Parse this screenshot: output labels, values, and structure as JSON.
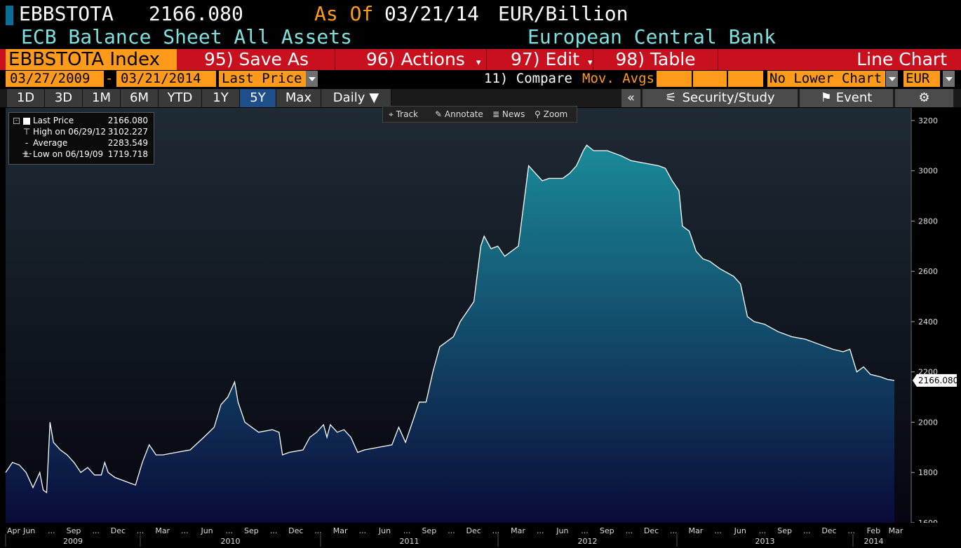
{
  "header": {
    "ticker": "EBBSTOTA",
    "price": "2166.080",
    "as_of_label": "As Of",
    "as_of_date": "03/21/14",
    "units": "EUR/Billion",
    "security_name": "ECB Balance Sheet All Assets",
    "source": "European Central Bank"
  },
  "menu": {
    "index_tab": "EBBSTOTA Index",
    "save_as": "95) Save As",
    "actions": "96) Actions",
    "edit": "97) Edit",
    "table": "98) Table",
    "chart_type": "Line Chart"
  },
  "controls": {
    "start_date": "03/27/2009",
    "date_sep": "-",
    "end_date": "03/21/2014",
    "field": "Last Price",
    "compare": "11) Compare",
    "mov_avgs": "Mov. Avgs",
    "lower_chart": "No Lower Chart",
    "currency": "EUR"
  },
  "periods": [
    {
      "label": "1D"
    },
    {
      "label": "3D"
    },
    {
      "label": "1M"
    },
    {
      "label": "6M"
    },
    {
      "label": "YTD"
    },
    {
      "label": "1Y"
    },
    {
      "label": "5Y"
    },
    {
      "label": "Max"
    }
  ],
  "frequency": "Daily",
  "tools": {
    "collapse": "«",
    "security_study": "Security/Study",
    "event": "Event"
  },
  "chart_tools": {
    "track": "Track",
    "annotate": "Annotate",
    "news": "News",
    "zoom": "Zoom"
  },
  "legend": {
    "last_label": "Last Price",
    "last_value": "2166.080",
    "high_label": "High on 06/29/12",
    "high_value": "3102.227",
    "avg_label": "Average",
    "avg_value": "2283.549",
    "low_label": "Low on 06/19/09",
    "low_value": "1719.718"
  },
  "colors": {
    "fill_top": "#1a8a99",
    "fill_bottom": "#0a0a3a",
    "line": "#ffffff",
    "orange": "#ff9a1a",
    "red": "#c8101e"
  },
  "chart_data": {
    "type": "area",
    "x_start": "2009-03-27",
    "x_end": "2014-03-21",
    "ylim": [
      1600,
      3250
    ],
    "yticks": [
      1600,
      1800,
      2000,
      2200,
      2400,
      2600,
      2800,
      3000,
      3200
    ],
    "last_value_label": "2166.080",
    "month_labels": [
      "Apr",
      "Jun",
      "...",
      "Sep",
      "...",
      "Dec",
      "...",
      "Mar",
      "...",
      "Jun",
      "...",
      "Sep",
      "...",
      "Dec",
      "...",
      "Mar",
      "...",
      "Jun",
      "...",
      "Sep",
      "...",
      "Dec",
      "...",
      "Mar",
      "...",
      "Jun",
      "...",
      "Sep",
      "...",
      "Dec",
      "...",
      "Mar",
      "...",
      "Jun",
      "...",
      "Sep",
      "...",
      "Dec",
      "...",
      "Feb",
      "Mar"
    ],
    "years": [
      "2009",
      "2010",
      "2011",
      "2012",
      "2013",
      "2014"
    ],
    "series": [
      {
        "points": [
          [
            "2009-03-27",
            1800
          ],
          [
            "2009-04-10",
            1840
          ],
          [
            "2009-04-24",
            1830
          ],
          [
            "2009-05-08",
            1800
          ],
          [
            "2009-05-22",
            1740
          ],
          [
            "2009-06-05",
            1800
          ],
          [
            "2009-06-12",
            1730
          ],
          [
            "2009-06-19",
            1720
          ],
          [
            "2009-06-26",
            2000
          ],
          [
            "2009-07-03",
            1920
          ],
          [
            "2009-07-17",
            1890
          ],
          [
            "2009-07-31",
            1870
          ],
          [
            "2009-08-14",
            1840
          ],
          [
            "2009-08-28",
            1800
          ],
          [
            "2009-09-11",
            1820
          ],
          [
            "2009-09-25",
            1790
          ],
          [
            "2009-10-09",
            1790
          ],
          [
            "2009-10-16",
            1840
          ],
          [
            "2009-10-23",
            1800
          ],
          [
            "2009-11-06",
            1780
          ],
          [
            "2009-11-20",
            1770
          ],
          [
            "2009-12-04",
            1760
          ],
          [
            "2009-12-18",
            1750
          ],
          [
            "2010-01-01",
            1840
          ],
          [
            "2010-01-15",
            1910
          ],
          [
            "2010-01-29",
            1870
          ],
          [
            "2010-02-12",
            1870
          ],
          [
            "2010-03-12",
            1880
          ],
          [
            "2010-04-09",
            1890
          ],
          [
            "2010-05-07",
            1940
          ],
          [
            "2010-05-28",
            1980
          ],
          [
            "2010-06-11",
            2070
          ],
          [
            "2010-06-25",
            2100
          ],
          [
            "2010-07-09",
            2160
          ],
          [
            "2010-07-16",
            2080
          ],
          [
            "2010-07-30",
            2000
          ],
          [
            "2010-08-27",
            1960
          ],
          [
            "2010-09-24",
            1970
          ],
          [
            "2010-10-08",
            1960
          ],
          [
            "2010-10-15",
            1870
          ],
          [
            "2010-10-29",
            1880
          ],
          [
            "2010-11-26",
            1890
          ],
          [
            "2010-12-10",
            1940
          ],
          [
            "2010-12-24",
            1960
          ],
          [
            "2011-01-07",
            1990
          ],
          [
            "2011-01-14",
            1940
          ],
          [
            "2011-01-21",
            1990
          ],
          [
            "2011-02-04",
            1960
          ],
          [
            "2011-02-18",
            1970
          ],
          [
            "2011-03-04",
            1940
          ],
          [
            "2011-03-18",
            1880
          ],
          [
            "2011-04-01",
            1890
          ],
          [
            "2011-04-29",
            1900
          ],
          [
            "2011-05-27",
            1910
          ],
          [
            "2011-06-10",
            1980
          ],
          [
            "2011-06-24",
            1920
          ],
          [
            "2011-07-08",
            2000
          ],
          [
            "2011-07-22",
            2080
          ],
          [
            "2011-08-05",
            2080
          ],
          [
            "2011-08-19",
            2200
          ],
          [
            "2011-09-02",
            2300
          ],
          [
            "2011-09-16",
            2320
          ],
          [
            "2011-09-30",
            2340
          ],
          [
            "2011-10-14",
            2400
          ],
          [
            "2011-10-28",
            2440
          ],
          [
            "2011-11-11",
            2480
          ],
          [
            "2011-11-25",
            2700
          ],
          [
            "2011-12-02",
            2740
          ],
          [
            "2011-12-16",
            2690
          ],
          [
            "2011-12-30",
            2700
          ],
          [
            "2012-01-13",
            2660
          ],
          [
            "2012-01-27",
            2680
          ],
          [
            "2012-02-10",
            2700
          ],
          [
            "2012-03-02",
            3020
          ],
          [
            "2012-03-16",
            2990
          ],
          [
            "2012-03-30",
            2960
          ],
          [
            "2012-04-13",
            2970
          ],
          [
            "2012-05-11",
            2970
          ],
          [
            "2012-05-25",
            2990
          ],
          [
            "2012-06-08",
            3020
          ],
          [
            "2012-06-22",
            3080
          ],
          [
            "2012-06-29",
            3102
          ],
          [
            "2012-07-13",
            3080
          ],
          [
            "2012-08-10",
            3080
          ],
          [
            "2012-09-07",
            3060
          ],
          [
            "2012-09-28",
            3040
          ],
          [
            "2012-10-26",
            3030
          ],
          [
            "2012-11-23",
            3020
          ],
          [
            "2012-12-07",
            3010
          ],
          [
            "2012-12-21",
            2960
          ],
          [
            "2013-01-04",
            2920
          ],
          [
            "2013-01-11",
            2780
          ],
          [
            "2013-01-25",
            2760
          ],
          [
            "2013-02-08",
            2680
          ],
          [
            "2013-02-22",
            2650
          ],
          [
            "2013-03-08",
            2640
          ],
          [
            "2013-03-29",
            2610
          ],
          [
            "2013-04-26",
            2580
          ],
          [
            "2013-05-10",
            2550
          ],
          [
            "2013-05-24",
            2420
          ],
          [
            "2013-06-07",
            2400
          ],
          [
            "2013-06-28",
            2390
          ],
          [
            "2013-07-26",
            2360
          ],
          [
            "2013-08-23",
            2340
          ],
          [
            "2013-09-20",
            2330
          ],
          [
            "2013-10-18",
            2310
          ],
          [
            "2013-11-15",
            2290
          ],
          [
            "2013-12-06",
            2280
          ],
          [
            "2013-12-20",
            2290
          ],
          [
            "2014-01-03",
            2200
          ],
          [
            "2014-01-17",
            2220
          ],
          [
            "2014-01-31",
            2190
          ],
          [
            "2014-02-21",
            2180
          ],
          [
            "2014-03-07",
            2170
          ],
          [
            "2014-03-21",
            2166
          ]
        ]
      }
    ]
  }
}
